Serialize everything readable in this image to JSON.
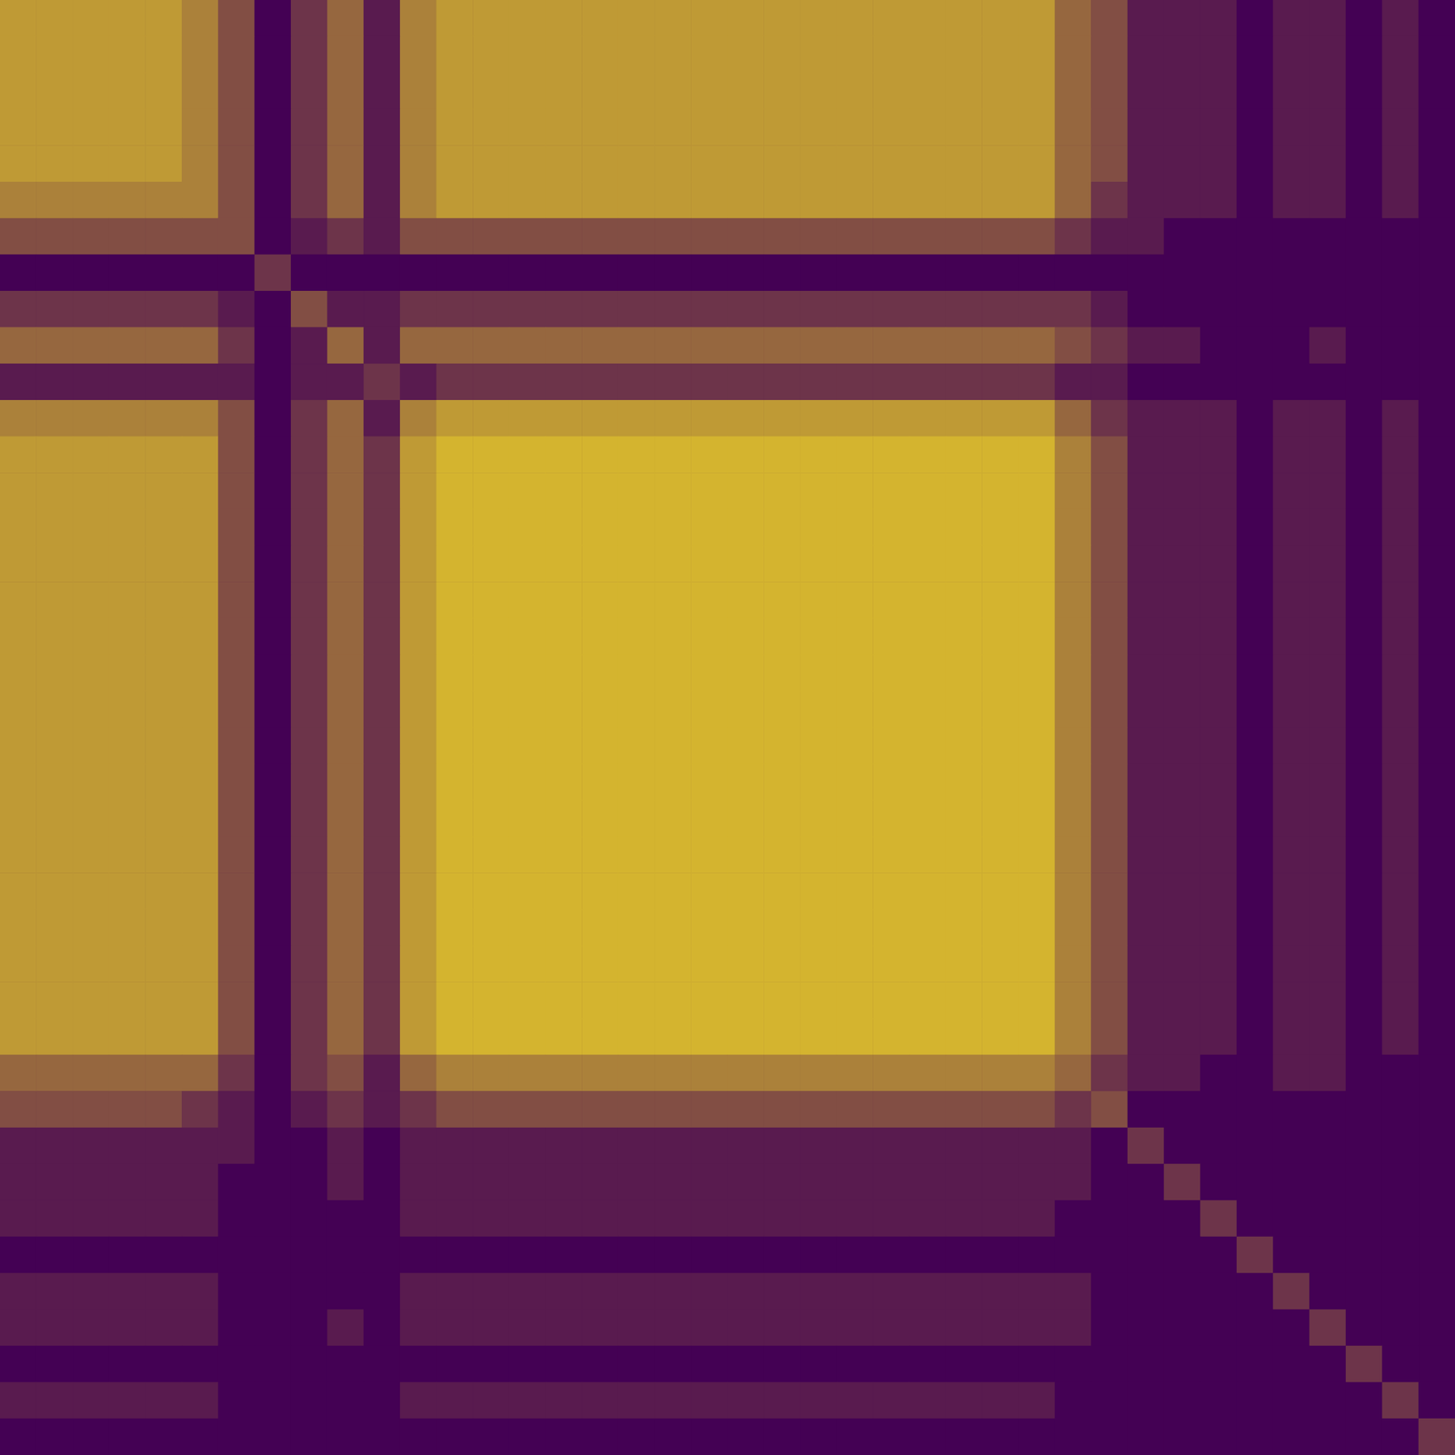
{
  "chart_data": {
    "type": "heatmap",
    "tick_labels": false,
    "color": [
      "#440154",
      "#fde725"
    ],
    "zlim": [
      0,
      9
    ],
    "cells": [
      [
        6,
        6,
        6,
        6,
        6,
        5,
        3,
        0,
        2,
        4,
        1,
        5,
        6,
        6,
        6,
        6,
        6,
        6,
        6,
        6,
        6,
        6,
        6,
        6,
        6,
        6,
        6,
        6,
        6,
        4,
        3,
        1,
        1,
        1,
        0,
        1,
        1,
        0,
        1,
        0
      ],
      [
        6,
        6,
        6,
        6,
        6,
        5,
        3,
        0,
        2,
        4,
        1,
        5,
        6,
        6,
        6,
        6,
        6,
        6,
        6,
        6,
        6,
        6,
        6,
        6,
        6,
        6,
        6,
        6,
        6,
        4,
        3,
        1,
        1,
        1,
        0,
        1,
        1,
        0,
        1,
        0
      ],
      [
        6,
        6,
        6,
        6,
        6,
        5,
        3,
        0,
        2,
        4,
        1,
        5,
        6,
        6,
        6,
        6,
        6,
        6,
        6,
        6,
        6,
        6,
        6,
        6,
        6,
        6,
        6,
        6,
        6,
        4,
        3,
        1,
        1,
        1,
        0,
        1,
        1,
        0,
        1,
        0
      ],
      [
        6,
        6,
        6,
        6,
        6,
        5,
        3,
        0,
        2,
        4,
        1,
        5,
        6,
        6,
        6,
        6,
        6,
        6,
        6,
        6,
        6,
        6,
        6,
        6,
        6,
        6,
        6,
        6,
        6,
        4,
        3,
        1,
        1,
        1,
        0,
        1,
        1,
        0,
        1,
        0
      ],
      [
        6,
        6,
        6,
        6,
        6,
        5,
        3,
        0,
        2,
        4,
        1,
        5,
        6,
        6,
        6,
        6,
        6,
        6,
        6,
        6,
        6,
        6,
        6,
        6,
        6,
        6,
        6,
        6,
        6,
        4,
        3,
        1,
        1,
        1,
        0,
        1,
        1,
        0,
        1,
        0
      ],
      [
        5,
        5,
        5,
        5,
        5,
        5,
        3,
        0,
        2,
        4,
        1,
        5,
        6,
        6,
        6,
        6,
        6,
        6,
        6,
        6,
        6,
        6,
        6,
        6,
        6,
        6,
        6,
        6,
        6,
        4,
        2,
        1,
        1,
        1,
        0,
        1,
        1,
        0,
        1,
        0
      ],
      [
        3,
        3,
        3,
        3,
        3,
        3,
        3,
        0,
        1,
        2,
        1,
        3,
        3,
        3,
        3,
        3,
        3,
        3,
        3,
        3,
        3,
        3,
        3,
        3,
        3,
        3,
        3,
        3,
        3,
        2,
        1,
        1,
        0,
        0,
        0,
        0,
        0,
        0,
        0,
        0
      ],
      [
        0,
        0,
        0,
        0,
        0,
        0,
        0,
        2,
        0,
        0,
        0,
        0,
        0,
        0,
        0,
        0,
        0,
        0,
        0,
        0,
        0,
        0,
        0,
        0,
        0,
        0,
        0,
        0,
        0,
        0,
        0,
        0,
        0,
        0,
        0,
        0,
        0,
        0,
        0,
        0
      ],
      [
        2,
        2,
        2,
        2,
        2,
        2,
        1,
        0,
        3,
        1,
        1,
        2,
        2,
        2,
        2,
        2,
        2,
        2,
        2,
        2,
        2,
        2,
        2,
        2,
        2,
        2,
        2,
        2,
        2,
        2,
        1,
        0,
        0,
        0,
        0,
        0,
        0,
        0,
        0,
        0
      ],
      [
        4,
        4,
        4,
        4,
        4,
        4,
        2,
        0,
        1,
        4,
        1,
        4,
        4,
        4,
        4,
        4,
        4,
        4,
        4,
        4,
        4,
        4,
        4,
        4,
        4,
        4,
        4,
        4,
        4,
        3,
        2,
        1,
        1,
        0,
        0,
        0,
        1,
        0,
        0,
        0
      ],
      [
        1,
        1,
        1,
        1,
        1,
        1,
        1,
        0,
        1,
        1,
        2,
        1,
        2,
        2,
        2,
        2,
        2,
        2,
        2,
        2,
        2,
        2,
        2,
        2,
        2,
        2,
        2,
        2,
        2,
        1,
        1,
        0,
        0,
        0,
        0,
        0,
        0,
        0,
        0,
        0
      ],
      [
        5,
        5,
        5,
        5,
        5,
        5,
        3,
        0,
        2,
        4,
        1,
        5,
        6,
        6,
        6,
        6,
        6,
        6,
        6,
        6,
        6,
        6,
        6,
        6,
        6,
        6,
        6,
        6,
        6,
        4,
        2,
        1,
        1,
        1,
        0,
        1,
        1,
        0,
        1,
        0
      ],
      [
        6,
        6,
        6,
        6,
        6,
        6,
        3,
        0,
        2,
        4,
        2,
        6,
        7,
        7,
        7,
        7,
        7,
        7,
        7,
        7,
        7,
        7,
        7,
        7,
        7,
        7,
        7,
        7,
        7,
        5,
        3,
        1,
        1,
        1,
        0,
        1,
        1,
        0,
        1,
        0
      ],
      [
        6,
        6,
        6,
        6,
        6,
        6,
        3,
        0,
        2,
        4,
        2,
        6,
        7,
        7,
        7,
        7,
        7,
        7,
        7,
        7,
        7,
        7,
        7,
        7,
        7,
        7,
        7,
        7,
        7,
        5,
        3,
        1,
        1,
        1,
        0,
        1,
        1,
        0,
        1,
        0
      ],
      [
        6,
        6,
        6,
        6,
        6,
        6,
        3,
        0,
        2,
        4,
        2,
        6,
        7,
        7,
        7,
        7,
        7,
        7,
        7,
        7,
        7,
        7,
        7,
        7,
        7,
        7,
        7,
        7,
        7,
        5,
        3,
        1,
        1,
        1,
        0,
        1,
        1,
        0,
        1,
        0
      ],
      [
        6,
        6,
        6,
        6,
        6,
        6,
        3,
        0,
        2,
        4,
        2,
        6,
        7,
        7,
        7,
        7,
        7,
        7,
        7,
        7,
        7,
        7,
        7,
        7,
        7,
        7,
        7,
        7,
        7,
        5,
        3,
        1,
        1,
        1,
        0,
        1,
        1,
        0,
        1,
        0
      ],
      [
        6,
        6,
        6,
        6,
        6,
        6,
        3,
        0,
        2,
        4,
        2,
        6,
        7,
        7,
        7,
        7,
        7,
        7,
        7,
        7,
        7,
        7,
        7,
        7,
        7,
        7,
        7,
        7,
        7,
        5,
        3,
        1,
        1,
        1,
        0,
        1,
        1,
        0,
        1,
        0
      ],
      [
        6,
        6,
        6,
        6,
        6,
        6,
        3,
        0,
        2,
        4,
        2,
        6,
        7,
        7,
        7,
        7,
        7,
        7,
        7,
        7,
        7,
        7,
        7,
        7,
        7,
        7,
        7,
        7,
        7,
        5,
        3,
        1,
        1,
        1,
        0,
        1,
        1,
        0,
        1,
        0
      ],
      [
        6,
        6,
        6,
        6,
        6,
        6,
        3,
        0,
        2,
        4,
        2,
        6,
        7,
        7,
        7,
        7,
        7,
        7,
        7,
        7,
        7,
        7,
        7,
        7,
        7,
        7,
        7,
        7,
        7,
        5,
        3,
        1,
        1,
        1,
        0,
        1,
        1,
        0,
        1,
        0
      ],
      [
        6,
        6,
        6,
        6,
        6,
        6,
        3,
        0,
        2,
        4,
        2,
        6,
        7,
        7,
        7,
        7,
        7,
        7,
        7,
        7,
        7,
        7,
        7,
        7,
        7,
        7,
        7,
        7,
        7,
        5,
        3,
        1,
        1,
        1,
        0,
        1,
        1,
        0,
        1,
        0
      ],
      [
        6,
        6,
        6,
        6,
        6,
        6,
        3,
        0,
        2,
        4,
        2,
        6,
        7,
        7,
        7,
        7,
        7,
        7,
        7,
        7,
        7,
        7,
        7,
        7,
        7,
        7,
        7,
        7,
        7,
        5,
        3,
        1,
        1,
        1,
        0,
        1,
        1,
        0,
        1,
        0
      ],
      [
        6,
        6,
        6,
        6,
        6,
        6,
        3,
        0,
        2,
        4,
        2,
        6,
        7,
        7,
        7,
        7,
        7,
        7,
        7,
        7,
        7,
        7,
        7,
        7,
        7,
        7,
        7,
        7,
        7,
        5,
        3,
        1,
        1,
        1,
        0,
        1,
        1,
        0,
        1,
        0
      ],
      [
        6,
        6,
        6,
        6,
        6,
        6,
        3,
        0,
        2,
        4,
        2,
        6,
        7,
        7,
        7,
        7,
        7,
        7,
        7,
        7,
        7,
        7,
        7,
        7,
        7,
        7,
        7,
        7,
        7,
        5,
        3,
        1,
        1,
        1,
        0,
        1,
        1,
        0,
        1,
        0
      ],
      [
        6,
        6,
        6,
        6,
        6,
        6,
        3,
        0,
        2,
        4,
        2,
        6,
        7,
        7,
        7,
        7,
        7,
        7,
        7,
        7,
        7,
        7,
        7,
        7,
        7,
        7,
        7,
        7,
        7,
        5,
        3,
        1,
        1,
        1,
        0,
        1,
        1,
        0,
        1,
        0
      ],
      [
        6,
        6,
        6,
        6,
        6,
        6,
        3,
        0,
        2,
        4,
        2,
        6,
        7,
        7,
        7,
        7,
        7,
        7,
        7,
        7,
        7,
        7,
        7,
        7,
        7,
        7,
        7,
        7,
        7,
        5,
        3,
        1,
        1,
        1,
        0,
        1,
        1,
        0,
        1,
        0
      ],
      [
        6,
        6,
        6,
        6,
        6,
        6,
        3,
        0,
        2,
        4,
        2,
        6,
        7,
        7,
        7,
        7,
        7,
        7,
        7,
        7,
        7,
        7,
        7,
        7,
        7,
        7,
        7,
        7,
        7,
        5,
        3,
        1,
        1,
        1,
        0,
        1,
        1,
        0,
        1,
        0
      ],
      [
        6,
        6,
        6,
        6,
        6,
        6,
        3,
        0,
        2,
        4,
        2,
        6,
        7,
        7,
        7,
        7,
        7,
        7,
        7,
        7,
        7,
        7,
        7,
        7,
        7,
        7,
        7,
        7,
        7,
        5,
        3,
        1,
        1,
        1,
        0,
        1,
        1,
        0,
        1,
        0
      ],
      [
        6,
        6,
        6,
        6,
        6,
        6,
        3,
        0,
        2,
        4,
        2,
        6,
        7,
        7,
        7,
        7,
        7,
        7,
        7,
        7,
        7,
        7,
        7,
        7,
        7,
        7,
        7,
        7,
        7,
        5,
        3,
        1,
        1,
        1,
        0,
        1,
        1,
        0,
        1,
        0
      ],
      [
        6,
        6,
        6,
        6,
        6,
        6,
        3,
        0,
        2,
        4,
        2,
        6,
        7,
        7,
        7,
        7,
        7,
        7,
        7,
        7,
        7,
        7,
        7,
        7,
        7,
        7,
        7,
        7,
        7,
        5,
        3,
        1,
        1,
        1,
        0,
        1,
        1,
        0,
        1,
        0
      ],
      [
        4,
        4,
        4,
        4,
        4,
        4,
        2,
        0,
        2,
        3,
        1,
        4,
        5,
        5,
        5,
        5,
        5,
        5,
        5,
        5,
        5,
        5,
        5,
        5,
        5,
        5,
        5,
        5,
        5,
        4,
        2,
        1,
        1,
        0,
        0,
        1,
        1,
        0,
        0,
        0
      ],
      [
        3,
        3,
        3,
        3,
        3,
        2,
        1,
        0,
        1,
        2,
        1,
        2,
        3,
        3,
        3,
        3,
        3,
        3,
        3,
        3,
        3,
        3,
        3,
        3,
        3,
        3,
        3,
        3,
        3,
        2,
        3,
        0,
        0,
        0,
        0,
        0,
        0,
        0,
        0,
        0
      ],
      [
        1,
        1,
        1,
        1,
        1,
        1,
        1,
        0,
        0,
        1,
        0,
        1,
        1,
        1,
        1,
        1,
        1,
        1,
        1,
        1,
        1,
        1,
        1,
        1,
        1,
        1,
        1,
        1,
        1,
        1,
        0,
        2,
        0,
        0,
        0,
        0,
        0,
        0,
        0,
        0
      ],
      [
        1,
        1,
        1,
        1,
        1,
        1,
        0,
        0,
        0,
        1,
        0,
        1,
        1,
        1,
        1,
        1,
        1,
        1,
        1,
        1,
        1,
        1,
        1,
        1,
        1,
        1,
        1,
        1,
        1,
        1,
        0,
        0,
        2,
        0,
        0,
        0,
        0,
        0,
        0,
        0
      ],
      [
        1,
        1,
        1,
        1,
        1,
        1,
        0,
        0,
        0,
        0,
        0,
        1,
        1,
        1,
        1,
        1,
        1,
        1,
        1,
        1,
        1,
        1,
        1,
        1,
        1,
        1,
        1,
        1,
        1,
        0,
        0,
        0,
        0,
        2,
        0,
        0,
        0,
        0,
        0,
        0
      ],
      [
        0,
        0,
        0,
        0,
        0,
        0,
        0,
        0,
        0,
        0,
        0,
        0,
        0,
        0,
        0,
        0,
        0,
        0,
        0,
        0,
        0,
        0,
        0,
        0,
        0,
        0,
        0,
        0,
        0,
        0,
        0,
        0,
        0,
        0,
        2,
        0,
        0,
        0,
        0,
        0
      ],
      [
        1,
        1,
        1,
        1,
        1,
        1,
        0,
        0,
        0,
        0,
        0,
        1,
        1,
        1,
        1,
        1,
        1,
        1,
        1,
        1,
        1,
        1,
        1,
        1,
        1,
        1,
        1,
        1,
        1,
        1,
        0,
        0,
        0,
        0,
        0,
        2,
        0,
        0,
        0,
        0
      ],
      [
        1,
        1,
        1,
        1,
        1,
        1,
        0,
        0,
        0,
        1,
        0,
        1,
        1,
        1,
        1,
        1,
        1,
        1,
        1,
        1,
        1,
        1,
        1,
        1,
        1,
        1,
        1,
        1,
        1,
        1,
        0,
        0,
        0,
        0,
        0,
        0,
        2,
        0,
        0,
        0
      ],
      [
        0,
        0,
        0,
        0,
        0,
        0,
        0,
        0,
        0,
        0,
        0,
        0,
        0,
        0,
        0,
        0,
        0,
        0,
        0,
        0,
        0,
        0,
        0,
        0,
        0,
        0,
        0,
        0,
        0,
        0,
        0,
        0,
        0,
        0,
        0,
        0,
        0,
        2,
        0,
        0
      ],
      [
        1,
        1,
        1,
        1,
        1,
        1,
        0,
        0,
        0,
        0,
        0,
        1,
        1,
        1,
        1,
        1,
        1,
        1,
        1,
        1,
        1,
        1,
        1,
        1,
        1,
        1,
        1,
        1,
        1,
        0,
        0,
        0,
        0,
        0,
        0,
        0,
        0,
        0,
        2,
        0
      ],
      [
        0,
        0,
        0,
        0,
        0,
        0,
        0,
        0,
        0,
        0,
        0,
        0,
        0,
        0,
        0,
        0,
        0,
        0,
        0,
        0,
        0,
        0,
        0,
        0,
        0,
        0,
        0,
        0,
        0,
        0,
        0,
        0,
        0,
        0,
        0,
        0,
        0,
        0,
        0,
        2
      ]
    ]
  }
}
